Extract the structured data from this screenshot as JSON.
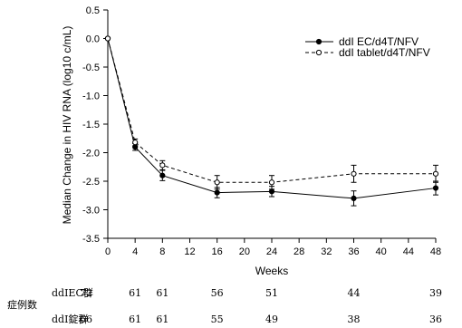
{
  "chart_data": {
    "type": "line",
    "title": "",
    "xlabel": "Weeks",
    "ylabel": "Median Change in HIV RNA (log10 c/mL)",
    "xlim": [
      0,
      48
    ],
    "ylim": [
      -3.5,
      0.5
    ],
    "x_ticks": [
      "0",
      "4",
      "8",
      "12",
      "16",
      "20",
      "24",
      "28",
      "32",
      "36",
      "40",
      "44",
      "48"
    ],
    "y_ticks": [
      "0.5",
      "0.0",
      "-0.5",
      "-1.0",
      "-1.5",
      "-2.0",
      "-2.5",
      "-3.0",
      "-3.5"
    ],
    "legend_position": "top-right",
    "x": [
      0,
      4,
      8,
      16,
      24,
      36,
      48
    ],
    "series": [
      {
        "name": "ddI EC/d4T/NFV",
        "style": "solid-filled",
        "values": [
          0.0,
          -1.9,
          -2.4,
          -2.7,
          -2.68,
          -2.8,
          -2.62
        ],
        "err": [
          0,
          0.06,
          0.09,
          0.09,
          0.09,
          0.13,
          0.12
        ]
      },
      {
        "name": "ddI tablet/d4T/NFV",
        "style": "dashed-open",
        "values": [
          0.0,
          -1.82,
          -2.22,
          -2.52,
          -2.52,
          -2.37,
          -2.37
        ],
        "err": [
          0,
          0.06,
          0.08,
          0.12,
          0.12,
          0.15,
          0.15
        ]
      }
    ]
  },
  "patients_table": {
    "title": "症例数",
    "rows": [
      {
        "label": "ddIEC群",
        "counts": [
          "72",
          "61",
          "61",
          "56",
          "51",
          "44",
          "39"
        ]
      },
      {
        "label": "ddI錠群",
        "counts": [
          "66",
          "61",
          "61",
          "55",
          "49",
          "38",
          "36"
        ]
      }
    ]
  }
}
